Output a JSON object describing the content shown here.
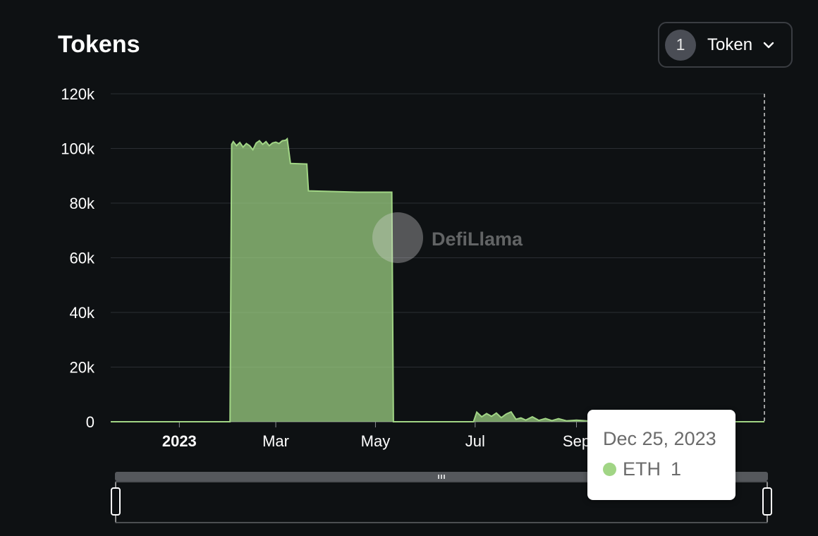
{
  "header": {
    "title": "Tokens"
  },
  "token_selector": {
    "count": "1",
    "label": "Token"
  },
  "watermark": {
    "text": "DefiLlama"
  },
  "tooltip": {
    "date": "Dec 25, 2023",
    "series": "ETH",
    "value": "1"
  },
  "colors": {
    "series": "#a1d585",
    "background": "#0e1113"
  },
  "chart_data": {
    "type": "area",
    "title": "Tokens",
    "xlabel": "",
    "ylabel": "",
    "ylim": [
      0,
      120000
    ],
    "yticks": [
      "0",
      "20k",
      "40k",
      "60k",
      "80k",
      "100k",
      "120k"
    ],
    "yticks_values": [
      0,
      20000,
      40000,
      60000,
      80000,
      100000,
      120000
    ],
    "xlim": [
      "2022-11-20",
      "2023-12-25"
    ],
    "xticks": [
      {
        "label": "2023",
        "date": "2023-01-01",
        "bold": true
      },
      {
        "label": "Mar",
        "date": "2023-03-01",
        "bold": false
      },
      {
        "label": "May",
        "date": "2023-05-01",
        "bold": false
      },
      {
        "label": "Jul",
        "date": "2023-07-01",
        "bold": false
      },
      {
        "label": "Sep",
        "date": "2023-09-01",
        "bold": false
      }
    ],
    "grid": true,
    "legend": "none",
    "series": [
      {
        "name": "ETH",
        "color": "#a1d585",
        "points": [
          [
            "2022-11-20",
            0
          ],
          [
            "2023-02-01",
            0
          ],
          [
            "2023-02-02",
            101500
          ],
          [
            "2023-02-03",
            102500
          ],
          [
            "2023-02-05",
            101000
          ],
          [
            "2023-02-07",
            102200
          ],
          [
            "2023-02-09",
            100500
          ],
          [
            "2023-02-11",
            101800
          ],
          [
            "2023-02-13",
            101000
          ],
          [
            "2023-02-15",
            99500
          ],
          [
            "2023-02-17",
            102000
          ],
          [
            "2023-02-19",
            102800
          ],
          [
            "2023-02-21",
            101500
          ],
          [
            "2023-02-23",
            102500
          ],
          [
            "2023-02-25",
            101000
          ],
          [
            "2023-02-27",
            102000
          ],
          [
            "2023-03-01",
            102300
          ],
          [
            "2023-03-03",
            101800
          ],
          [
            "2023-03-05",
            102800
          ],
          [
            "2023-03-07",
            103000
          ],
          [
            "2023-03-08",
            103500
          ],
          [
            "2023-03-10",
            94500
          ],
          [
            "2023-03-20",
            94300
          ],
          [
            "2023-03-21",
            84500
          ],
          [
            "2023-04-20",
            84000
          ],
          [
            "2023-05-11",
            84000
          ],
          [
            "2023-05-12",
            0
          ],
          [
            "2023-06-30",
            0
          ],
          [
            "2023-07-02",
            3500
          ],
          [
            "2023-07-05",
            1800
          ],
          [
            "2023-07-08",
            3000
          ],
          [
            "2023-07-11",
            2000
          ],
          [
            "2023-07-14",
            3200
          ],
          [
            "2023-07-17",
            1500
          ],
          [
            "2023-07-20",
            2800
          ],
          [
            "2023-07-23",
            3600
          ],
          [
            "2023-07-26",
            900
          ],
          [
            "2023-07-29",
            1400
          ],
          [
            "2023-08-01",
            600
          ],
          [
            "2023-08-05",
            1800
          ],
          [
            "2023-08-09",
            500
          ],
          [
            "2023-08-13",
            1200
          ],
          [
            "2023-08-17",
            400
          ],
          [
            "2023-08-21",
            1100
          ],
          [
            "2023-08-26",
            300
          ],
          [
            "2023-09-01",
            600
          ],
          [
            "2023-09-10",
            200
          ],
          [
            "2023-09-20",
            100
          ],
          [
            "2023-10-15",
            20
          ],
          [
            "2023-12-25",
            1
          ]
        ]
      }
    ]
  }
}
